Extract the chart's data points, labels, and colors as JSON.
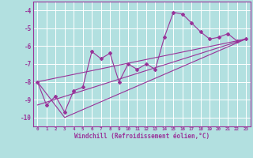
{
  "xlabel": "Windchill (Refroidissement éolien,°C)",
  "background_color": "#b2e0e0",
  "grid_color": "#ffffff",
  "line_color": "#993399",
  "xlim": [
    -0.5,
    23.5
  ],
  "ylim": [
    -10.5,
    -3.5
  ],
  "yticks": [
    -10,
    -9,
    -8,
    -7,
    -6,
    -5,
    -4
  ],
  "xticks": [
    0,
    1,
    2,
    3,
    4,
    5,
    6,
    7,
    8,
    9,
    10,
    11,
    12,
    13,
    14,
    15,
    16,
    17,
    18,
    19,
    20,
    21,
    22,
    23
  ],
  "series1_x": [
    0,
    1,
    2,
    3,
    4,
    5,
    6,
    7,
    8,
    9,
    10,
    11,
    12,
    13,
    14,
    15,
    16,
    17,
    18,
    19,
    20,
    21,
    22,
    23
  ],
  "series1_y": [
    -8.0,
    -9.3,
    -8.8,
    -9.7,
    -8.5,
    -8.3,
    -6.3,
    -6.7,
    -6.4,
    -8.0,
    -7.0,
    -7.3,
    -7.0,
    -7.3,
    -5.5,
    -4.1,
    -4.2,
    -4.7,
    -5.2,
    -5.6,
    -5.5,
    -5.3,
    -5.7,
    -5.6
  ],
  "series2_x": [
    0,
    3,
    23
  ],
  "series2_y": [
    -8.0,
    -10.0,
    -5.6
  ],
  "series3_x": [
    0,
    23
  ],
  "series3_y": [
    -8.0,
    -5.6
  ],
  "series4_x": [
    0,
    23
  ],
  "series4_y": [
    -9.3,
    -5.6
  ],
  "ylabel_fontsize": 5.5,
  "xlabel_fontsize": 5.5
}
